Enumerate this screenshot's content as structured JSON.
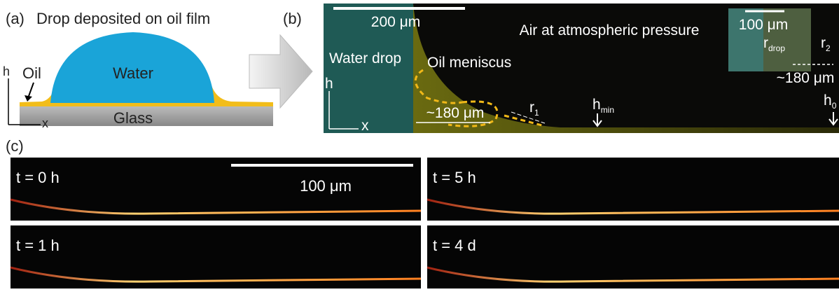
{
  "panel_a": {
    "label": "(a)",
    "title": "Drop deposited on oil film",
    "water": "Water",
    "oil": "Oil",
    "glass": "Glass",
    "axis_h": "h",
    "axis_x": "x"
  },
  "panel_b": {
    "label": "(b)",
    "scale_bar": "200 μm",
    "air": "Air at atmospheric pressure",
    "inset_scale_bar": "100 μm",
    "water_drop": "Water drop",
    "oil_meniscus": "Oil meniscus",
    "r_drop": {
      "base": "r",
      "sub": "drop"
    },
    "r_2": {
      "base": "r",
      "sub": "2"
    },
    "inset_width": "~180 μm",
    "meniscus_width": "~180 μm",
    "r_1": {
      "base": "r",
      "sub": "1"
    },
    "h_min": {
      "base": "h",
      "sub": "min"
    },
    "h_0": {
      "base": "h",
      "sub": "0"
    },
    "axis_h": "h",
    "axis_x": "x"
  },
  "panel_c": {
    "label": "(c)",
    "scale_bar": "100 μm",
    "frames": [
      "t = 0 h",
      "t = 5 h",
      "t = 1 h",
      "t = 4 d"
    ]
  }
}
